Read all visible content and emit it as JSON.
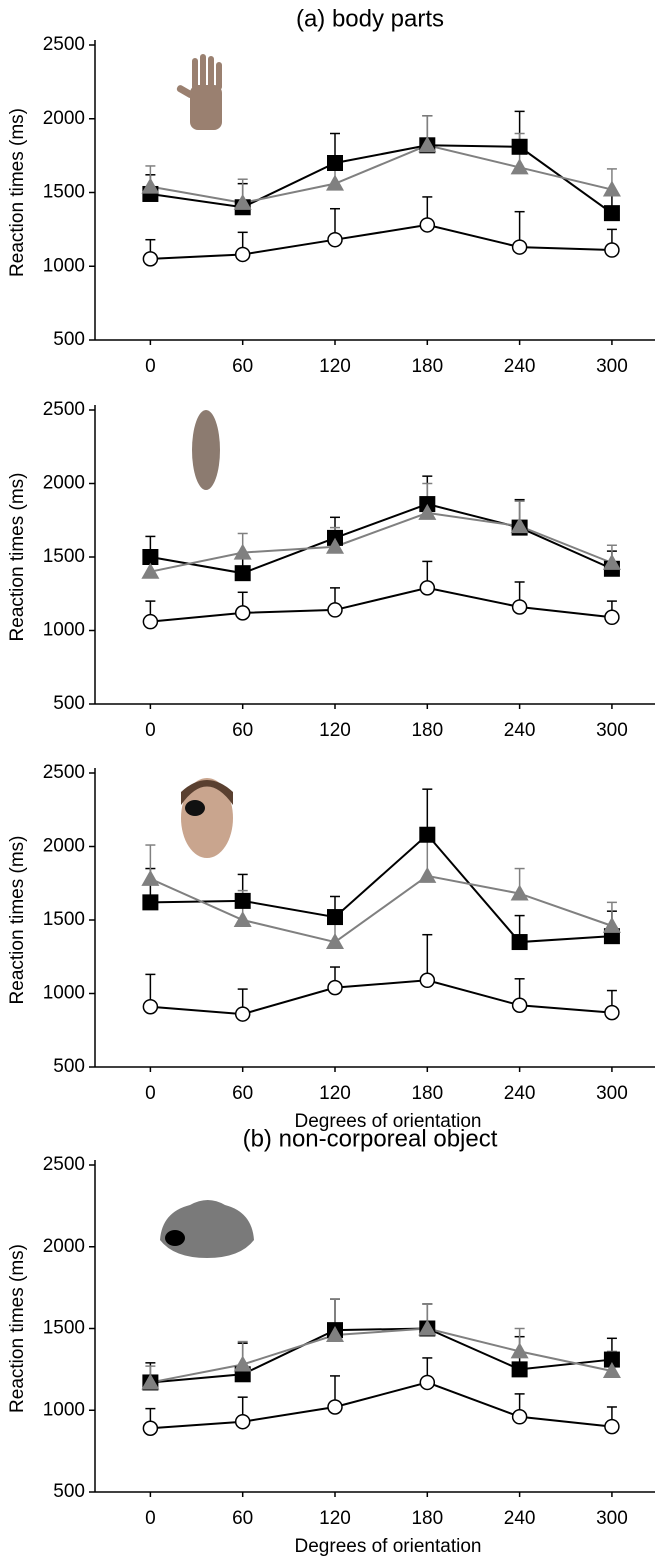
{
  "chart_data": [
    {
      "type": "line",
      "title": "(a) body parts",
      "ylabel": "Reaction times (ms)",
      "x": [
        0,
        60,
        120,
        180,
        240,
        300
      ],
      "xlim": [
        -36,
        328
      ],
      "xticks": [
        0,
        60,
        120,
        180,
        240,
        300
      ],
      "ylim": [
        500,
        2500
      ],
      "yticks": [
        500,
        1000,
        1500,
        2000,
        2500
      ],
      "series": [
        {
          "marker": "square",
          "color": "#000000",
          "line_color": "#000000",
          "values": [
            1490,
            1400,
            1700,
            1820,
            1810,
            1360
          ],
          "errors": [
            130,
            160,
            200,
            200,
            240,
            140
          ]
        },
        {
          "marker": "triangle",
          "color": "#808080",
          "line_color": "#808080",
          "values": [
            1540,
            1430,
            1560,
            1820,
            1670,
            1520
          ],
          "errors": [
            140,
            160,
            150,
            200,
            230,
            140
          ]
        },
        {
          "marker": "circle",
          "color": "#ffffff",
          "line_color": "#000000",
          "values": [
            1050,
            1080,
            1180,
            1280,
            1130,
            1110
          ],
          "errors": [
            130,
            150,
            210,
            190,
            240,
            140
          ]
        }
      ]
    },
    {
      "type": "line",
      "ylabel": "Reaction times (ms)",
      "x": [
        0,
        60,
        120,
        180,
        240,
        300
      ],
      "xlim": [
        -36,
        328
      ],
      "xticks": [
        0,
        60,
        120,
        180,
        240,
        300
      ],
      "ylim": [
        500,
        2500
      ],
      "yticks": [
        500,
        1000,
        1500,
        2000,
        2500
      ],
      "series": [
        {
          "marker": "square",
          "color": "#000000",
          "line_color": "#000000",
          "values": [
            1500,
            1390,
            1630,
            1860,
            1700,
            1420
          ],
          "errors": [
            140,
            140,
            140,
            190,
            190,
            120
          ]
        },
        {
          "marker": "triangle",
          "color": "#808080",
          "line_color": "#808080",
          "values": [
            1400,
            1530,
            1570,
            1800,
            1710,
            1460
          ],
          "errors": [
            120,
            130,
            130,
            200,
            170,
            120
          ]
        },
        {
          "marker": "circle",
          "color": "#ffffff",
          "line_color": "#000000",
          "values": [
            1060,
            1120,
            1140,
            1290,
            1160,
            1090
          ],
          "errors": [
            140,
            140,
            150,
            180,
            170,
            110
          ]
        }
      ]
    },
    {
      "type": "line",
      "ylabel": "Reaction times (ms)",
      "xlabel": "Degrees of orientation",
      "x": [
        0,
        60,
        120,
        180,
        240,
        300
      ],
      "xlim": [
        -36,
        328
      ],
      "xticks": [
        0,
        60,
        120,
        180,
        240,
        300
      ],
      "ylim": [
        500,
        2500
      ],
      "yticks": [
        500,
        1000,
        1500,
        2000,
        2500
      ],
      "series": [
        {
          "marker": "square",
          "color": "#000000",
          "line_color": "#000000",
          "values": [
            1620,
            1630,
            1520,
            2080,
            1350,
            1390
          ],
          "errors": [
            230,
            180,
            140,
            310,
            180,
            170
          ]
        },
        {
          "marker": "triangle",
          "color": "#808080",
          "line_color": "#808080",
          "values": [
            1780,
            1500,
            1350,
            1800,
            1680,
            1460
          ],
          "errors": [
            230,
            200,
            160,
            300,
            170,
            160
          ]
        },
        {
          "marker": "circle",
          "color": "#ffffff",
          "line_color": "#000000",
          "values": [
            910,
            860,
            1040,
            1090,
            920,
            870
          ],
          "errors": [
            220,
            170,
            140,
            310,
            180,
            150
          ]
        }
      ]
    },
    {
      "type": "line",
      "title": "(b) non-corporeal object",
      "ylabel": "Reaction times (ms)",
      "xlabel": "Degrees of orientation",
      "x": [
        0,
        60,
        120,
        180,
        240,
        300
      ],
      "xlim": [
        -36,
        328
      ],
      "xticks": [
        0,
        60,
        120,
        180,
        240,
        300
      ],
      "ylim": [
        500,
        2500
      ],
      "yticks": [
        500,
        1000,
        1500,
        2000,
        2500
      ],
      "series": [
        {
          "marker": "square",
          "color": "#000000",
          "line_color": "#000000",
          "values": [
            1170,
            1220,
            1490,
            1500,
            1250,
            1310
          ],
          "errors": [
            120,
            190,
            190,
            150,
            200,
            130
          ]
        },
        {
          "marker": "triangle",
          "color": "#808080",
          "line_color": "#808080",
          "values": [
            1170,
            1280,
            1460,
            1500,
            1360,
            1240
          ],
          "errors": [
            100,
            140,
            220,
            150,
            140,
            120
          ]
        },
        {
          "marker": "circle",
          "color": "#ffffff",
          "line_color": "#000000",
          "values": [
            890,
            930,
            1020,
            1170,
            960,
            900
          ],
          "errors": [
            120,
            150,
            190,
            150,
            140,
            120
          ]
        }
      ]
    }
  ]
}
